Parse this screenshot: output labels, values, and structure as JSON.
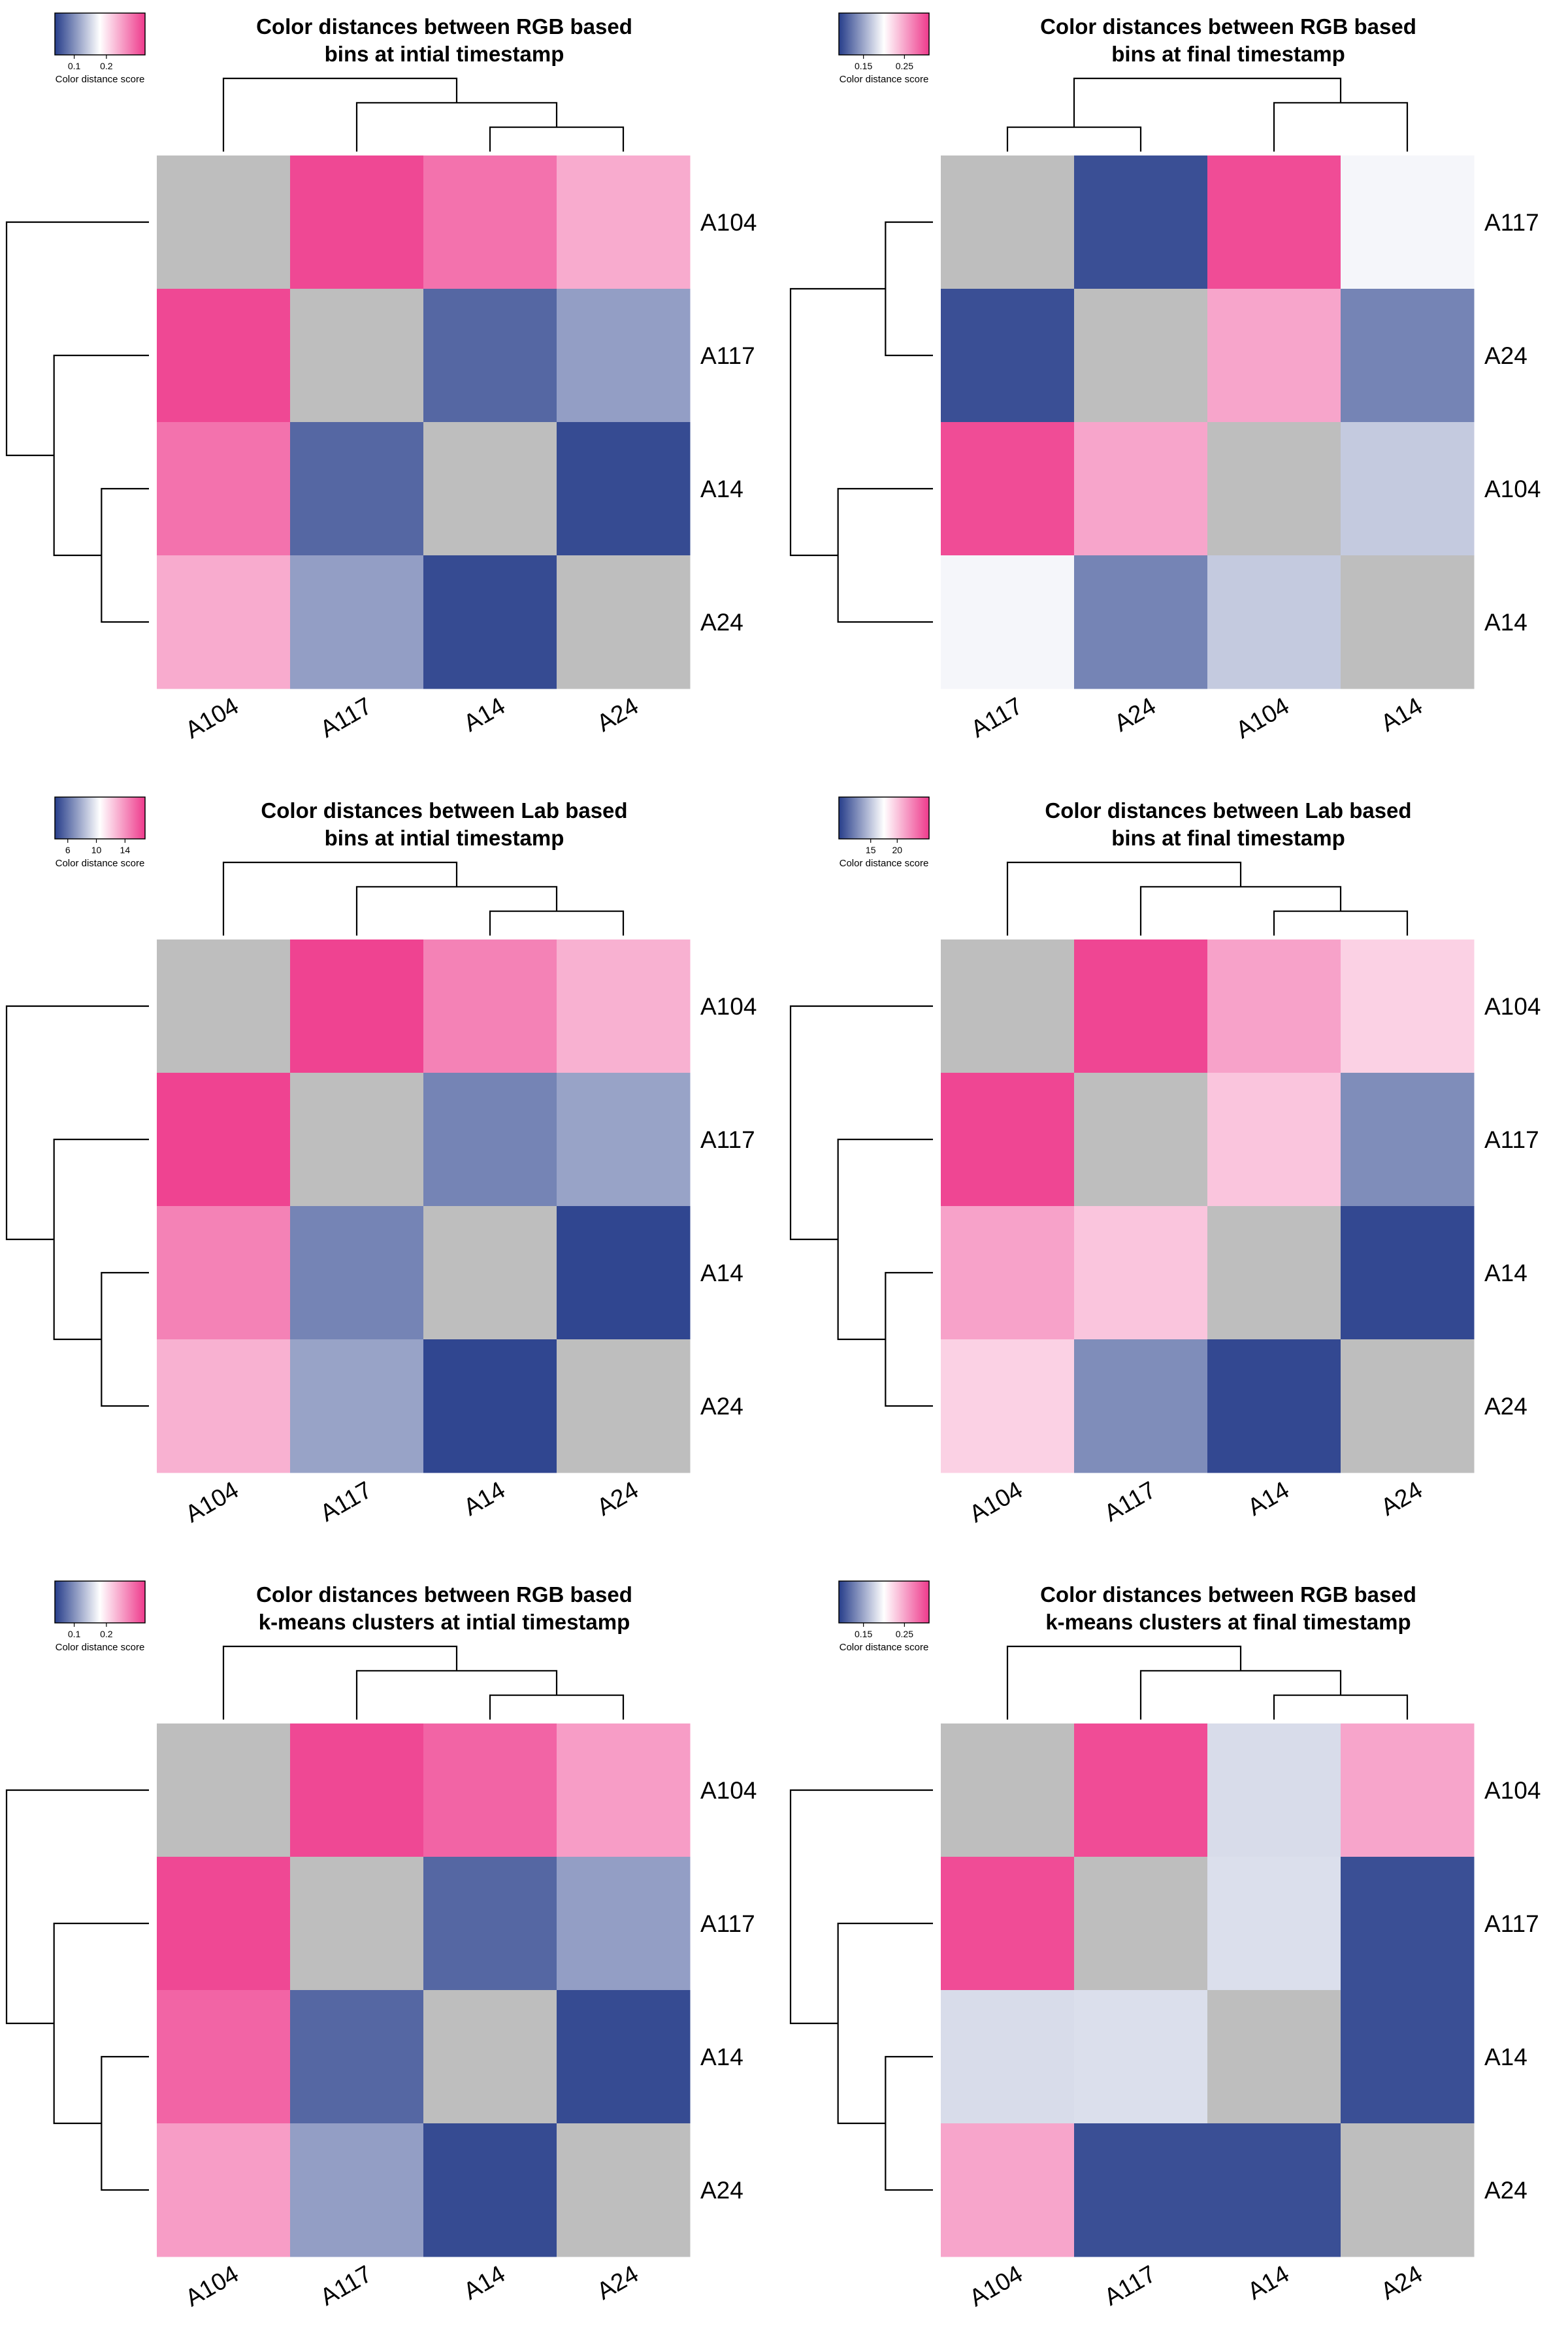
{
  "chart_data": [
    {
      "type": "heatmap",
      "title": [
        "Color distances between RGB based",
        "bins at intial timestamp"
      ],
      "rows": [
        "A104",
        "A117",
        "A14",
        "A24"
      ],
      "columns": [
        "A104",
        "A117",
        "A14",
        "A24"
      ],
      "values": [
        [
          null,
          0.31,
          0.28,
          0.24
        ],
        [
          0.31,
          null,
          0.07,
          0.11
        ],
        [
          0.28,
          0.07,
          null,
          0.05
        ],
        [
          0.24,
          0.11,
          0.05,
          null
        ]
      ],
      "legend": {
        "title": "Color distance score",
        "ticks": [
          0.1,
          0.2
        ],
        "min": 0.04,
        "max": 0.32,
        "placement": "top-left"
      },
      "colors": {
        "low": "#263d8a",
        "mid": "#ffffff",
        "high": "#ee3a8c",
        "diagonal": "#bebebe"
      },
      "row_dendrogram": {
        "merges": [
          [
            2,
            3
          ],
          [
            1,
            2
          ],
          [
            0,
            1
          ]
        ]
      },
      "col_dendrogram": {
        "merges": [
          [
            2,
            3
          ],
          [
            1,
            2
          ],
          [
            0,
            1
          ]
        ]
      }
    },
    {
      "type": "heatmap",
      "title": [
        "Color distances between RGB based",
        "bins at final timestamp"
      ],
      "rows": [
        "A117",
        "A24",
        "A104",
        "A14"
      ],
      "columns": [
        "A117",
        "A24",
        "A104",
        "A14"
      ],
      "values": [
        [
          null,
          0.1,
          0.3,
          0.195
        ],
        [
          0.1,
          null,
          0.25,
          0.13
        ],
        [
          0.3,
          0.25,
          null,
          0.17
        ],
        [
          0.195,
          0.13,
          0.17,
          null
        ]
      ],
      "legend": {
        "title": "Color distance score",
        "ticks": [
          0.15,
          0.25
        ],
        "min": 0.09,
        "max": 0.31,
        "placement": "top-left"
      },
      "colors": {
        "low": "#263d8a",
        "mid": "#ffffff",
        "high": "#ee3a8c",
        "diagonal": "#bebebe"
      },
      "row_dendrogram": {
        "merges": [
          [
            0,
            1
          ],
          [
            2,
            3
          ],
          [
            0,
            2
          ]
        ]
      },
      "col_dendrogram": {
        "merges": [
          [
            0,
            1
          ],
          [
            2,
            3
          ],
          [
            0,
            2
          ]
        ]
      }
    },
    {
      "type": "heatmap",
      "title": [
        "Color distances between Lab based",
        "bins at intial timestamp"
      ],
      "rows": [
        "A104",
        "A117",
        "A14",
        "A24"
      ],
      "columns": [
        "A104",
        "A117",
        "A14",
        "A24"
      ],
      "values": [
        [
          null,
          16.5,
          14.5,
          13.0
        ],
        [
          16.5,
          null,
          6.5,
          7.5
        ],
        [
          14.5,
          6.5,
          null,
          4.5
        ],
        [
          13.0,
          7.5,
          4.5,
          null
        ]
      ],
      "legend": {
        "title": "Color distance score",
        "ticks": [
          6,
          10,
          14
        ],
        "min": 4.2,
        "max": 16.8,
        "placement": "top-left"
      },
      "colors": {
        "low": "#263d8a",
        "mid": "#ffffff",
        "high": "#ee3a8c",
        "diagonal": "#bebebe"
      },
      "row_dendrogram": {
        "merges": [
          [
            2,
            3
          ],
          [
            1,
            2
          ],
          [
            0,
            1
          ]
        ]
      },
      "col_dendrogram": {
        "merges": [
          [
            2,
            3
          ],
          [
            1,
            2
          ],
          [
            0,
            1
          ]
        ]
      }
    },
    {
      "type": "heatmap",
      "title": [
        "Color distances between Lab based",
        "bins at final timestamp"
      ],
      "rows": [
        "A104",
        "A117",
        "A14",
        "A24"
      ],
      "columns": [
        "A104",
        "A117",
        "A14",
        "A24"
      ],
      "values": [
        [
          null,
          25.5,
          21.5,
          19.5
        ],
        [
          25.5,
          null,
          20.0,
          12.5
        ],
        [
          21.5,
          20.0,
          null,
          9.5
        ],
        [
          19.5,
          12.5,
          9.5,
          null
        ]
      ],
      "legend": {
        "title": "Color distance score",
        "ticks": [
          15,
          20
        ],
        "min": 9.0,
        "max": 26.0,
        "placement": "top-left"
      },
      "colors": {
        "low": "#263d8a",
        "mid": "#ffffff",
        "high": "#ee3a8c",
        "diagonal": "#bebebe"
      },
      "row_dendrogram": {
        "merges": [
          [
            2,
            3
          ],
          [
            1,
            2
          ],
          [
            0,
            1
          ]
        ]
      },
      "col_dendrogram": {
        "merges": [
          [
            2,
            3
          ],
          [
            1,
            2
          ],
          [
            0,
            1
          ]
        ]
      }
    },
    {
      "type": "heatmap",
      "title": [
        "Color distances between RGB based",
        "k-means clusters at intial timestamp"
      ],
      "rows": [
        "A104",
        "A117",
        "A14",
        "A24"
      ],
      "columns": [
        "A104",
        "A117",
        "A14",
        "A24"
      ],
      "values": [
        [
          null,
          0.31,
          0.29,
          0.25
        ],
        [
          0.31,
          null,
          0.07,
          0.11
        ],
        [
          0.29,
          0.07,
          null,
          0.05
        ],
        [
          0.25,
          0.11,
          0.05,
          null
        ]
      ],
      "legend": {
        "title": "Color distance score",
        "ticks": [
          0.1,
          0.2
        ],
        "min": 0.04,
        "max": 0.32,
        "placement": "top-left"
      },
      "colors": {
        "low": "#263d8a",
        "mid": "#ffffff",
        "high": "#ee3a8c",
        "diagonal": "#bebebe"
      },
      "row_dendrogram": {
        "merges": [
          [
            2,
            3
          ],
          [
            1,
            2
          ],
          [
            0,
            1
          ]
        ]
      },
      "col_dendrogram": {
        "merges": [
          [
            2,
            3
          ],
          [
            1,
            2
          ],
          [
            0,
            1
          ]
        ]
      }
    },
    {
      "type": "heatmap",
      "title": [
        "Color distances between RGB based",
        "k-means clusters at final timestamp"
      ],
      "rows": [
        "A104",
        "A117",
        "A14",
        "A24"
      ],
      "columns": [
        "A104",
        "A117",
        "A14",
        "A24"
      ],
      "values": [
        [
          null,
          0.3,
          0.18,
          0.25
        ],
        [
          0.3,
          null,
          0.182,
          0.1
        ],
        [
          0.18,
          0.182,
          null,
          0.1
        ],
        [
          0.25,
          0.1,
          0.1,
          null
        ]
      ],
      "legend": {
        "title": "Color distance score",
        "ticks": [
          0.15,
          0.25
        ],
        "min": 0.09,
        "max": 0.31,
        "placement": "top-left"
      },
      "colors": {
        "low": "#263d8a",
        "mid": "#ffffff",
        "high": "#ee3a8c",
        "diagonal": "#bebebe"
      },
      "row_dendrogram": {
        "merges": [
          [
            2,
            3
          ],
          [
            1,
            2
          ],
          [
            0,
            1
          ]
        ]
      },
      "col_dendrogram": {
        "merges": [
          [
            2,
            3
          ],
          [
            1,
            2
          ],
          [
            0,
            1
          ]
        ]
      }
    }
  ]
}
